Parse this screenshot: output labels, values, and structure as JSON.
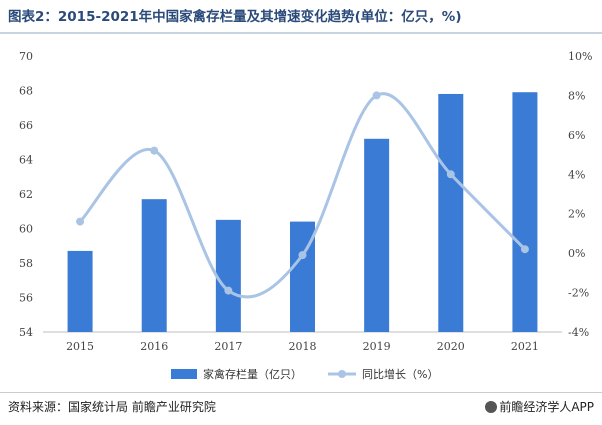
{
  "title": "图表2：2015-2021年中国家禽存栏量及其增速变化趋势(单位：亿只，%)",
  "source": "资料来源：国家统计局 前瞻产业研究院",
  "brand": "前瞻经济学人APP",
  "chart_data": {
    "type": "bar+line",
    "categories": [
      "2015",
      "2016",
      "2017",
      "2018",
      "2019",
      "2020",
      "2021"
    ],
    "series": [
      {
        "name": "家禽存栏量（亿只）",
        "type": "bar",
        "axis": "left",
        "color": "#3a7bd5",
        "values": [
          58.7,
          61.7,
          60.5,
          60.4,
          65.2,
          67.8,
          67.9
        ]
      },
      {
        "name": "同比增长（%）",
        "type": "line",
        "axis": "right",
        "color": "#a9c4e4",
        "values": [
          1.6,
          5.2,
          -1.9,
          -0.1,
          8.0,
          4.0,
          0.2
        ]
      }
    ],
    "left_axis": {
      "min": 54,
      "max": 70,
      "ticks": [
        "54",
        "56",
        "58",
        "60",
        "62",
        "64",
        "66",
        "68",
        "70"
      ]
    },
    "right_axis": {
      "min": -4,
      "max": 10,
      "ticks": [
        "-4%",
        "-2%",
        "0%",
        "2%",
        "4%",
        "6%",
        "8%",
        "10%"
      ]
    },
    "legend_position": "bottom",
    "grid": false
  }
}
